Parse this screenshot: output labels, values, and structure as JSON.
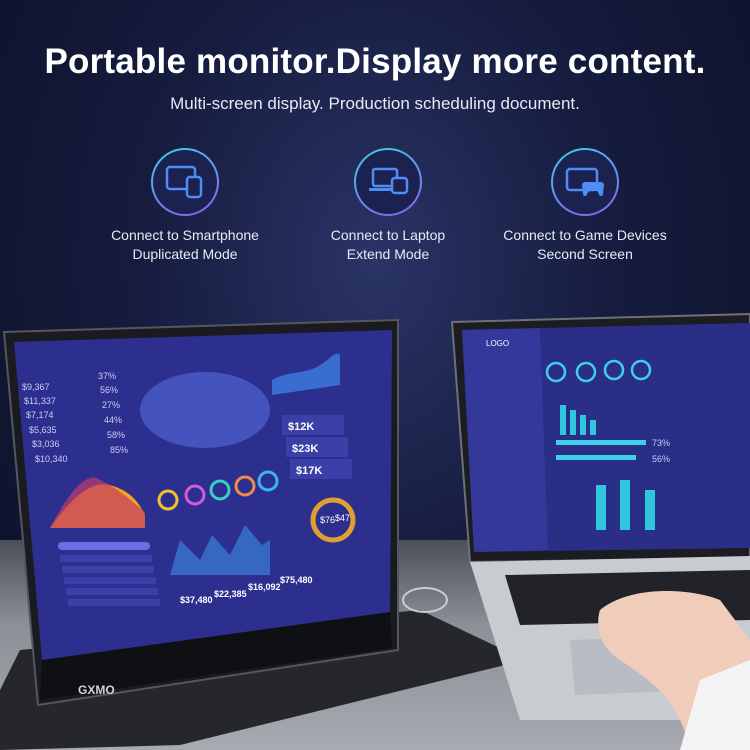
{
  "header": {
    "title": "Portable monitor.Display more content.",
    "subtitle": "Multi-screen display. Production scheduling document."
  },
  "features": [
    {
      "icon": "tablet-smartphone-icon",
      "line1": "Connect to Smartphone",
      "line2": "Duplicated Mode"
    },
    {
      "icon": "laptop-tablet-icon",
      "line1": "Connect to Laptop",
      "line2": "Extend Mode"
    },
    {
      "icon": "monitor-gamepad-icon",
      "line1": "Connect to Game Devices",
      "line2": "Second Screen"
    }
  ],
  "colors": {
    "accent_cyan": "#3fd0e8",
    "accent_purple": "#8a5cf0",
    "screen_bg": "#2d2f8f"
  },
  "monitor": {
    "brand": "GXMO",
    "stats": [
      {
        "value": "$9,367",
        "pct": "37%"
      },
      {
        "value": "$11,337",
        "pct": "56%"
      },
      {
        "value": "$7,174",
        "pct": "27%"
      },
      {
        "value": "$5,635",
        "pct": "44%"
      },
      {
        "value": "$3,036",
        "pct": "58%"
      },
      {
        "value": "$10,340",
        "pct": "85%"
      }
    ],
    "kpis": [
      "$12K",
      "$23K",
      "$17K"
    ],
    "totals": [
      "$37,480",
      "$22,385",
      "$16,092",
      "$75,480"
    ],
    "donut": [
      "$76",
      "$47"
    ]
  },
  "laptop": {
    "logo": "LOGO",
    "percents": [
      "73%",
      "56%"
    ]
  }
}
